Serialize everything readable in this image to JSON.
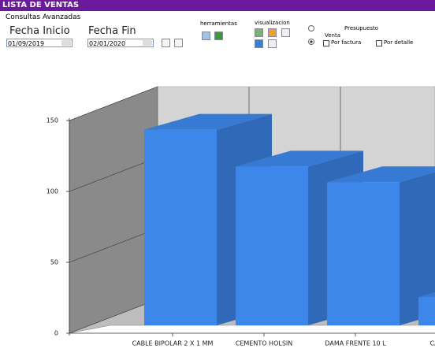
{
  "header": {
    "title": "LISTA DE VENTAS"
  },
  "filters": {
    "section": "Consultas Avanzadas",
    "start_label": "Fecha Inicio",
    "start_value": "01/09/2019",
    "end_label": "Fecha Fin",
    "end_value": "02/01/2020"
  },
  "tools": {
    "label": "herramientas"
  },
  "view": {
    "label": "visualizacion"
  },
  "options": {
    "budget": "Presupuesto",
    "sale": "Venta",
    "by_invoice": "Por factura",
    "by_detail": "Por detalle"
  },
  "chart_data": {
    "type": "bar3d",
    "categories": [
      "CABLE BIPOLAR 2 X 1 MM",
      "CEMENTO HOLSIN",
      "DAMA FRENTE 10 L",
      "CABLE UNI"
    ],
    "values": [
      138,
      112,
      101,
      20
    ],
    "color": "#3d87ea",
    "ylim": [
      0,
      150
    ],
    "yticks": [
      0,
      50,
      100,
      150
    ],
    "grid": true
  }
}
